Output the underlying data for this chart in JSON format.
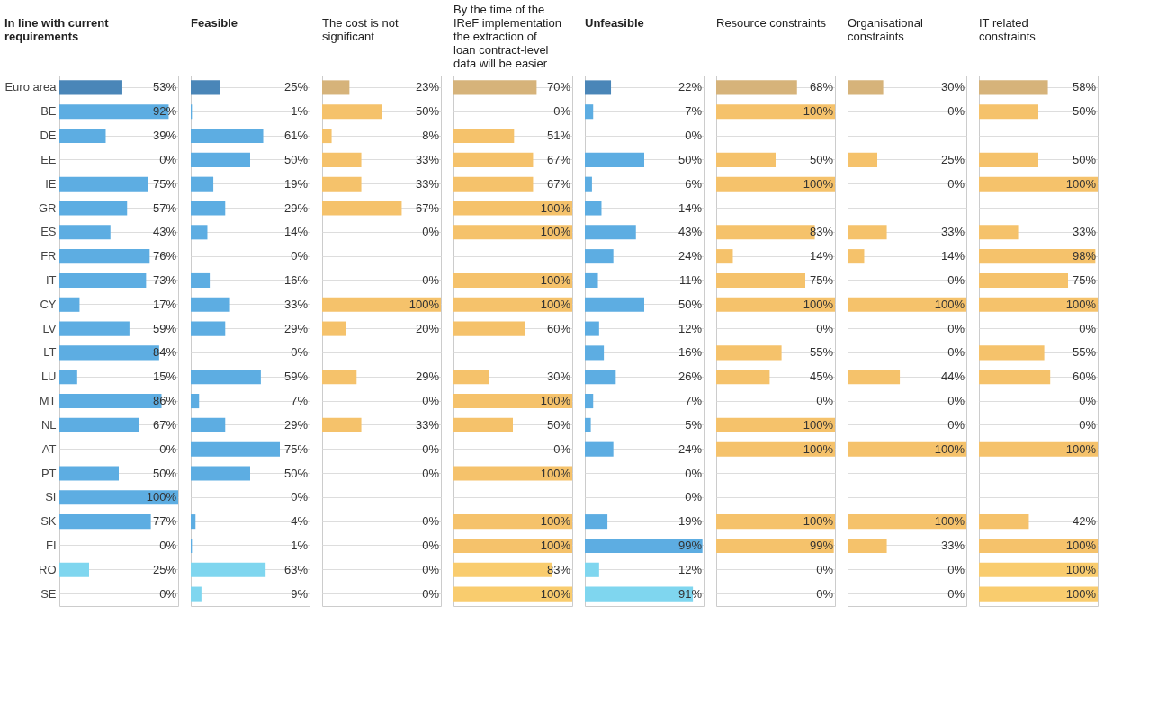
{
  "chart_data": [
    {
      "type": "bar",
      "orientation": "horizontal",
      "title": "In line with current requirements",
      "categories": [
        "Euro area",
        "BE",
        "DE",
        "EE",
        "IE",
        "GR",
        "ES",
        "FR",
        "IT",
        "CY",
        "LV",
        "LT",
        "LU",
        "MT",
        "NL",
        "AT",
        "PT",
        "SI",
        "SK",
        "FI",
        "RO",
        "SE"
      ],
      "xlim": [
        0,
        100
      ],
      "grid": "y",
      "tick_labels": "y",
      "values": [
        53,
        92,
        39,
        0,
        75,
        57,
        43,
        76,
        73,
        17,
        59,
        84,
        15,
        86,
        67,
        0,
        50,
        100,
        77,
        0,
        25,
        0
      ],
      "value_labels": [
        "53%",
        "92%",
        "39%",
        "0%",
        "75%",
        "57%",
        "43%",
        "76%",
        "73%",
        "17%",
        "59%",
        "84%",
        "15%",
        "86%",
        "67%",
        "0%",
        "50%",
        "100%",
        "77%",
        "0%",
        "25%",
        "0%"
      ],
      "colors": [
        "#4a86b8",
        "#5dade2",
        "#5dade2",
        "#5dade2",
        "#5dade2",
        "#5dade2",
        "#5dade2",
        "#5dade2",
        "#5dade2",
        "#5dade2",
        "#5dade2",
        "#5dade2",
        "#5dade2",
        "#5dade2",
        "#5dade2",
        "#5dade2",
        "#5dade2",
        "#5dade2",
        "#5dade2",
        "#5dade2",
        "#7fd6ef",
        "#7fd6ef"
      ]
    },
    {
      "type": "bar",
      "orientation": "horizontal",
      "title": "Feasible",
      "categories": [
        "Euro area",
        "BE",
        "DE",
        "EE",
        "IE",
        "GR",
        "ES",
        "FR",
        "IT",
        "CY",
        "LV",
        "LT",
        "LU",
        "MT",
        "NL",
        "AT",
        "PT",
        "SI",
        "SK",
        "FI",
        "RO",
        "SE"
      ],
      "xlim": [
        0,
        100
      ],
      "grid": "y",
      "tick_labels": false,
      "values": [
        25,
        1,
        61,
        50,
        19,
        29,
        14,
        0,
        16,
        33,
        29,
        0,
        59,
        7,
        29,
        75,
        50,
        0,
        4,
        1,
        63,
        9
      ],
      "value_labels": [
        "25%",
        "1%",
        "61%",
        "50%",
        "19%",
        "29%",
        "14%",
        "0%",
        "16%",
        "33%",
        "29%",
        "0%",
        "59%",
        "7%",
        "29%",
        "75%",
        "50%",
        "0%",
        "4%",
        "1%",
        "63%",
        "9%"
      ],
      "colors": [
        "#4a86b8",
        "#5dade2",
        "#5dade2",
        "#5dade2",
        "#5dade2",
        "#5dade2",
        "#5dade2",
        "#5dade2",
        "#5dade2",
        "#5dade2",
        "#5dade2",
        "#5dade2",
        "#5dade2",
        "#5dade2",
        "#5dade2",
        "#5dade2",
        "#5dade2",
        "#5dade2",
        "#5dade2",
        "#5dade2",
        "#7fd6ef",
        "#7fd6ef"
      ]
    },
    {
      "type": "bar",
      "orientation": "horizontal",
      "title": "The cost is not significant",
      "categories": [
        "Euro area",
        "BE",
        "DE",
        "EE",
        "IE",
        "GR",
        "ES",
        "FR",
        "IT",
        "CY",
        "LV",
        "LT",
        "LU",
        "MT",
        "NL",
        "AT",
        "PT",
        "SI",
        "SK",
        "FI",
        "RO",
        "SE"
      ],
      "xlim": [
        0,
        100
      ],
      "grid": "y",
      "tick_labels": false,
      "values": [
        23,
        50,
        8,
        33,
        33,
        67,
        0,
        null,
        0,
        100,
        20,
        null,
        29,
        0,
        33,
        0,
        0,
        null,
        0,
        0,
        0,
        0
      ],
      "value_labels": [
        "23%",
        "50%",
        "8%",
        "33%",
        "33%",
        "67%",
        "0%",
        null,
        "0%",
        "100%",
        "20%",
        null,
        "29%",
        "0%",
        "33%",
        "0%",
        "0%",
        null,
        "0%",
        "0%",
        "0%",
        "0%"
      ],
      "colors": [
        "#d6b37a",
        "#f5c26b",
        "#f5c26b",
        "#f5c26b",
        "#f5c26b",
        "#f5c26b",
        "#f5c26b",
        "#f5c26b",
        "#f5c26b",
        "#f5c26b",
        "#f5c26b",
        "#f5c26b",
        "#f5c26b",
        "#f5c26b",
        "#f5c26b",
        "#f5c26b",
        "#f5c26b",
        "#f5c26b",
        "#f5c26b",
        "#f5c26b",
        "#f9cc6e",
        "#f9cc6e"
      ]
    },
    {
      "type": "bar",
      "orientation": "horizontal",
      "title": "By the time of the IReF implementation the extraction of loan contract-level data will be easier",
      "categories": [
        "Euro area",
        "BE",
        "DE",
        "EE",
        "IE",
        "GR",
        "ES",
        "FR",
        "IT",
        "CY",
        "LV",
        "LT",
        "LU",
        "MT",
        "NL",
        "AT",
        "PT",
        "SI",
        "SK",
        "FI",
        "RO",
        "SE"
      ],
      "xlim": [
        0,
        100
      ],
      "grid": "y",
      "tick_labels": false,
      "values": [
        70,
        0,
        51,
        67,
        67,
        100,
        100,
        null,
        100,
        100,
        60,
        null,
        30,
        100,
        50,
        0,
        100,
        null,
        100,
        100,
        83,
        100
      ],
      "value_labels": [
        "70%",
        "0%",
        "51%",
        "67%",
        "67%",
        "100%",
        "100%",
        null,
        "100%",
        "100%",
        "60%",
        null,
        "30%",
        "100%",
        "50%",
        "0%",
        "100%",
        null,
        "100%",
        "100%",
        "83%",
        "100%"
      ],
      "colors": [
        "#d6b37a",
        "#f5c26b",
        "#f5c26b",
        "#f5c26b",
        "#f5c26b",
        "#f5c26b",
        "#f5c26b",
        "#f5c26b",
        "#f5c26b",
        "#f5c26b",
        "#f5c26b",
        "#f5c26b",
        "#f5c26b",
        "#f5c26b",
        "#f5c26b",
        "#f5c26b",
        "#f5c26b",
        "#f5c26b",
        "#f5c26b",
        "#f5c26b",
        "#f9cc6e",
        "#f9cc6e"
      ]
    },
    {
      "type": "bar",
      "orientation": "horizontal",
      "title": "Unfeasible",
      "categories": [
        "Euro area",
        "BE",
        "DE",
        "EE",
        "IE",
        "GR",
        "ES",
        "FR",
        "IT",
        "CY",
        "LV",
        "LT",
        "LU",
        "MT",
        "NL",
        "AT",
        "PT",
        "SI",
        "SK",
        "FI",
        "RO",
        "SE"
      ],
      "xlim": [
        0,
        100
      ],
      "grid": "y",
      "tick_labels": false,
      "values": [
        22,
        7,
        0,
        50,
        6,
        14,
        43,
        24,
        11,
        50,
        12,
        16,
        26,
        7,
        5,
        24,
        0,
        0,
        19,
        99,
        12,
        91
      ],
      "value_labels": [
        "22%",
        "7%",
        "0%",
        "50%",
        "6%",
        "14%",
        "43%",
        "24%",
        "11%",
        "50%",
        "12%",
        "16%",
        "26%",
        "7%",
        "5%",
        "24%",
        "0%",
        "0%",
        "19%",
        "99%",
        "12%",
        "91%"
      ],
      "colors": [
        "#4a86b8",
        "#5dade2",
        "#5dade2",
        "#5dade2",
        "#5dade2",
        "#5dade2",
        "#5dade2",
        "#5dade2",
        "#5dade2",
        "#5dade2",
        "#5dade2",
        "#5dade2",
        "#5dade2",
        "#5dade2",
        "#5dade2",
        "#5dade2",
        "#5dade2",
        "#5dade2",
        "#5dade2",
        "#5dade2",
        "#7fd6ef",
        "#7fd6ef"
      ]
    },
    {
      "type": "bar",
      "orientation": "horizontal",
      "title": "Resource constraints",
      "categories": [
        "Euro area",
        "BE",
        "DE",
        "EE",
        "IE",
        "GR",
        "ES",
        "FR",
        "IT",
        "CY",
        "LV",
        "LT",
        "LU",
        "MT",
        "NL",
        "AT",
        "PT",
        "SI",
        "SK",
        "FI",
        "RO",
        "SE"
      ],
      "xlim": [
        0,
        100
      ],
      "grid": "y",
      "tick_labels": false,
      "values": [
        68,
        100,
        null,
        50,
        100,
        null,
        83,
        14,
        75,
        100,
        0,
        55,
        45,
        0,
        100,
        100,
        null,
        null,
        100,
        99,
        0,
        0
      ],
      "value_labels": [
        "68%",
        "100%",
        null,
        "50%",
        "100%",
        null,
        "83%",
        "14%",
        "75%",
        "100%",
        "0%",
        "55%",
        "45%",
        "0%",
        "100%",
        "100%",
        null,
        null,
        "100%",
        "99%",
        "0%",
        "0%"
      ],
      "colors": [
        "#d6b37a",
        "#f5c26b",
        "#f5c26b",
        "#f5c26b",
        "#f5c26b",
        "#f5c26b",
        "#f5c26b",
        "#f5c26b",
        "#f5c26b",
        "#f5c26b",
        "#f5c26b",
        "#f5c26b",
        "#f5c26b",
        "#f5c26b",
        "#f5c26b",
        "#f5c26b",
        "#f5c26b",
        "#f5c26b",
        "#f5c26b",
        "#f5c26b",
        "#f9cc6e",
        "#f9cc6e"
      ]
    },
    {
      "type": "bar",
      "orientation": "horizontal",
      "title": "Organisational constraints",
      "categories": [
        "Euro area",
        "BE",
        "DE",
        "EE",
        "IE",
        "GR",
        "ES",
        "FR",
        "IT",
        "CY",
        "LV",
        "LT",
        "LU",
        "MT",
        "NL",
        "AT",
        "PT",
        "SI",
        "SK",
        "FI",
        "RO",
        "SE"
      ],
      "xlim": [
        0,
        100
      ],
      "grid": "y",
      "tick_labels": false,
      "values": [
        30,
        0,
        null,
        25,
        0,
        null,
        33,
        14,
        0,
        100,
        0,
        0,
        44,
        0,
        0,
        100,
        null,
        null,
        100,
        33,
        0,
        0
      ],
      "value_labels": [
        "30%",
        "0%",
        null,
        "25%",
        "0%",
        null,
        "33%",
        "14%",
        "0%",
        "100%",
        "0%",
        "0%",
        "44%",
        "0%",
        "0%",
        "100%",
        null,
        null,
        "100%",
        "33%",
        "0%",
        "0%"
      ],
      "colors": [
        "#d6b37a",
        "#f5c26b",
        "#f5c26b",
        "#f5c26b",
        "#f5c26b",
        "#f5c26b",
        "#f5c26b",
        "#f5c26b",
        "#f5c26b",
        "#f5c26b",
        "#f5c26b",
        "#f5c26b",
        "#f5c26b",
        "#f5c26b",
        "#f5c26b",
        "#f5c26b",
        "#f5c26b",
        "#f5c26b",
        "#f5c26b",
        "#f5c26b",
        "#f9cc6e",
        "#f9cc6e"
      ]
    },
    {
      "type": "bar",
      "orientation": "horizontal",
      "title": "IT related constraints",
      "categories": [
        "Euro area",
        "BE",
        "DE",
        "EE",
        "IE",
        "GR",
        "ES",
        "FR",
        "IT",
        "CY",
        "LV",
        "LT",
        "LU",
        "MT",
        "NL",
        "AT",
        "PT",
        "SI",
        "SK",
        "FI",
        "RO",
        "SE"
      ],
      "xlim": [
        0,
        100
      ],
      "grid": "y",
      "tick_labels": false,
      "values": [
        58,
        50,
        null,
        50,
        100,
        null,
        33,
        98,
        75,
        100,
        0,
        55,
        60,
        0,
        0,
        100,
        null,
        null,
        42,
        100,
        100,
        100
      ],
      "value_labels": [
        "58%",
        "50%",
        null,
        "50%",
        "100%",
        null,
        "33%",
        "98%",
        "75%",
        "100%",
        "0%",
        "55%",
        "60%",
        "0%",
        "0%",
        "100%",
        null,
        null,
        "42%",
        "100%",
        "100%",
        "100%"
      ],
      "colors": [
        "#d6b37a",
        "#f5c26b",
        "#f5c26b",
        "#f5c26b",
        "#f5c26b",
        "#f5c26b",
        "#f5c26b",
        "#f5c26b",
        "#f5c26b",
        "#f5c26b",
        "#f5c26b",
        "#f5c26b",
        "#f5c26b",
        "#f5c26b",
        "#f5c26b",
        "#f5c26b",
        "#f5c26b",
        "#f5c26b",
        "#f5c26b",
        "#f5c26b",
        "#f9cc6e",
        "#f9cc6e"
      ]
    }
  ]
}
